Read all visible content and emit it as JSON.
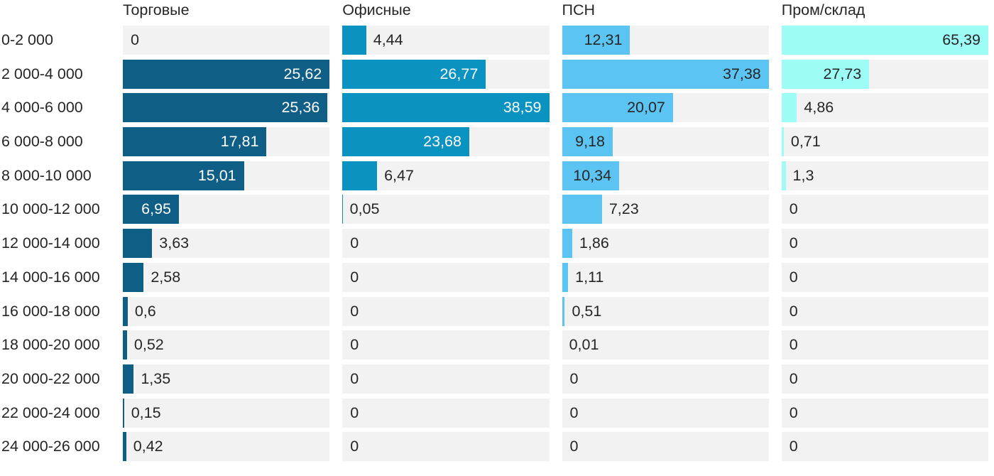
{
  "chart_data": {
    "type": "bar",
    "orientation": "horizontal",
    "title": "",
    "xlabel": "",
    "ylabel": "",
    "grid": false,
    "legend_position": "column-headers-top",
    "scaling": "each-column-scaled-to-its-own-max",
    "value_format": "comma-decimal",
    "categories": [
      "0-2 000",
      "2 000-4 000",
      "4 000-6 000",
      "6 000-8 000",
      "8 000-10 000",
      "10 000-12 000",
      "12 000-14 000",
      "14 000-16 000",
      "16 000-18 000",
      "18 000-20 000",
      "20 000-22 000",
      "22 000-24 000",
      "24 000-26 000"
    ],
    "series": [
      {
        "name": "Торговые",
        "color": "#0e5e86",
        "inside_label_color": "#ffffff",
        "max": 25.62,
        "values": [
          0,
          25.62,
          25.36,
          17.81,
          15.01,
          6.95,
          3.63,
          2.58,
          0.6,
          0.52,
          1.35,
          0.15,
          0.42
        ]
      },
      {
        "name": "Офисные",
        "color": "#0a92c0",
        "inside_label_color": "#ffffff",
        "max": 38.59,
        "values": [
          4.44,
          26.77,
          38.59,
          23.68,
          6.47,
          0.05,
          0,
          0,
          0,
          0,
          0,
          0,
          0
        ]
      },
      {
        "name": "ПСН",
        "color": "#5bc4f2",
        "inside_label_color": "#262626",
        "max": 37.38,
        "values": [
          12.31,
          37.38,
          20.07,
          9.18,
          10.34,
          7.23,
          1.86,
          1.11,
          0.51,
          0.01,
          0,
          0,
          0
        ]
      },
      {
        "name": "Пром/склад",
        "color": "#9dfdf6",
        "inside_label_color": "#262626",
        "max": 65.39,
        "values": [
          65.39,
          27.73,
          4.86,
          0.71,
          1.3,
          0,
          0,
          0,
          0,
          0,
          0,
          0,
          0
        ]
      }
    ],
    "track_color": "#f2f2f2",
    "text_color": "#262626"
  }
}
